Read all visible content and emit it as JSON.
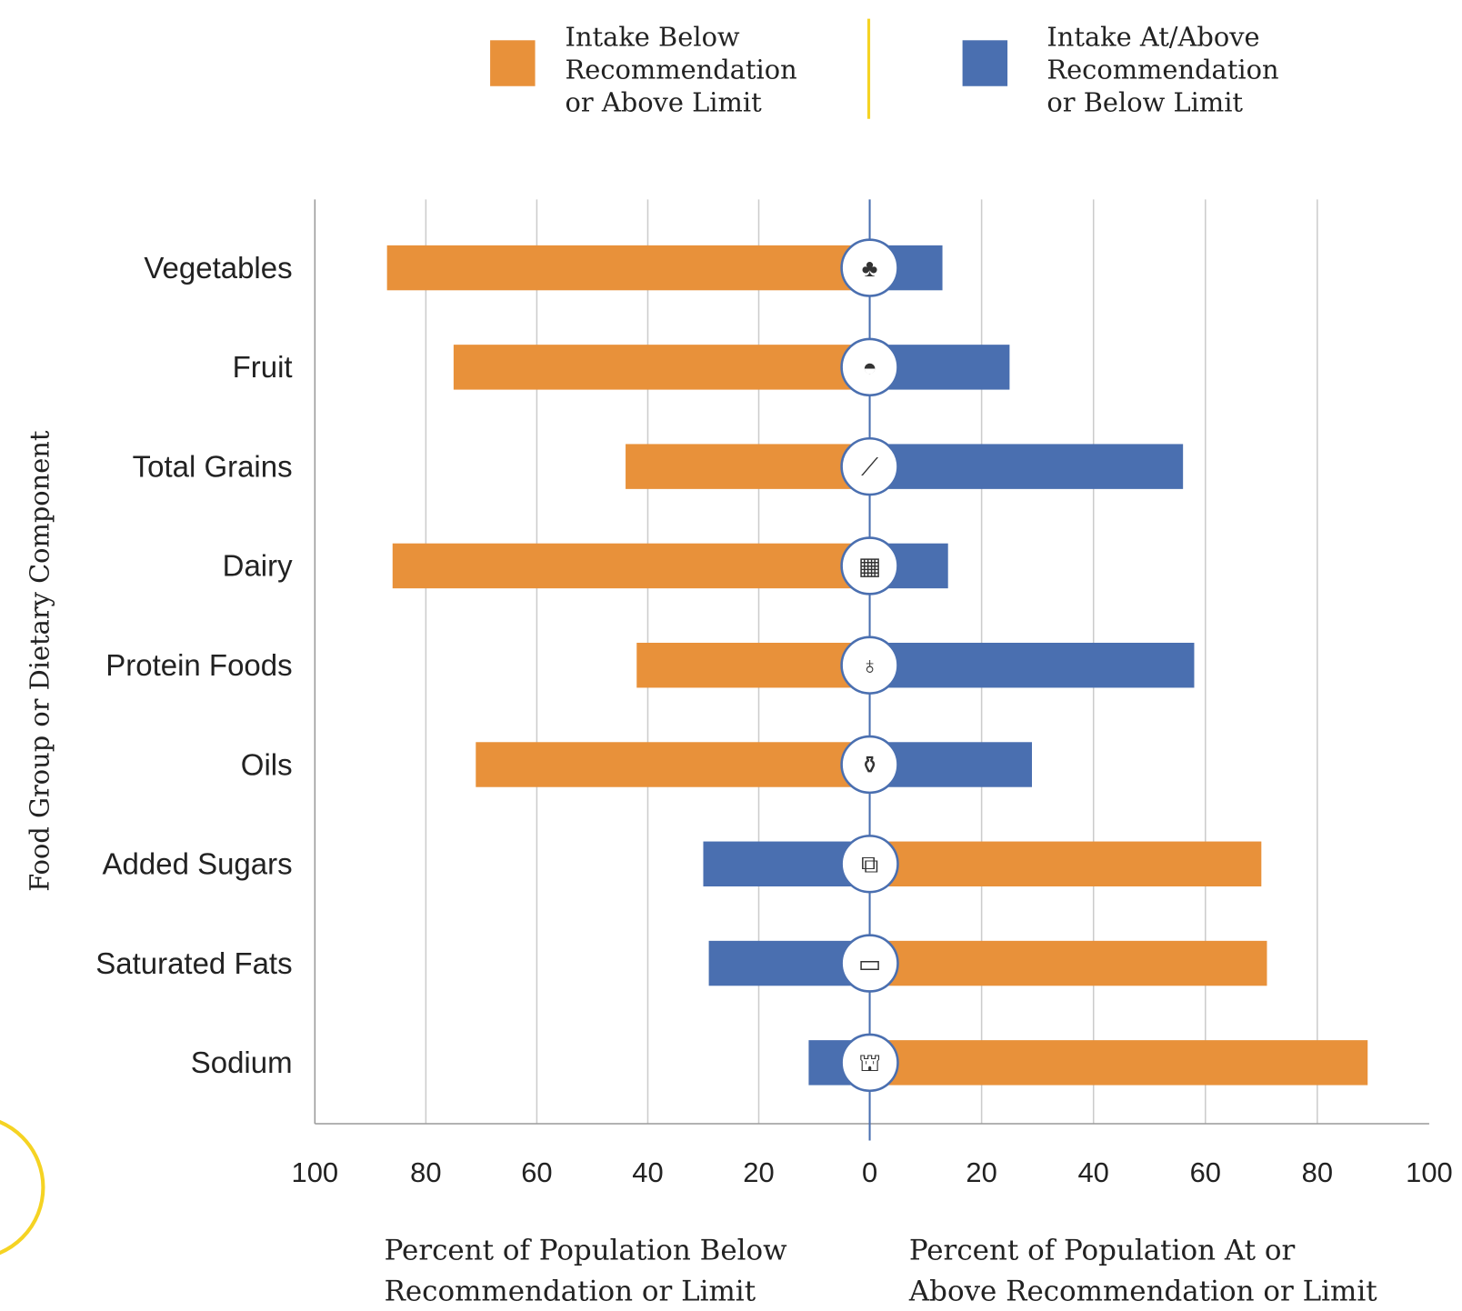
{
  "legend": {
    "below": {
      "lines": [
        "Intake Below",
        "Recommendation",
        "or Above Limit"
      ],
      "color": "#E8913A"
    },
    "above": {
      "lines": [
        "Intake At/Above",
        "Recommendation",
        "or Below Limit"
      ],
      "color": "#4A6FB0"
    }
  },
  "chart_data": {
    "type": "bar",
    "orientation": "horizontal-diverging",
    "ylabel": "Food Group or Dietary Component",
    "xlabel_left": [
      "Percent of Population Below",
      "Recommendation or Limit"
    ],
    "xlabel_right": [
      "Percent of Population At or",
      "Above Recommendation or Limit"
    ],
    "xlim_left": [
      100,
      0
    ],
    "xlim_right": [
      0,
      100
    ],
    "x_ticks_left": [
      "100",
      "80",
      "60",
      "40",
      "20"
    ],
    "x_ticks_center": "0",
    "x_ticks_right": [
      "20",
      "40",
      "60",
      "80",
      "100"
    ],
    "grid": true,
    "legend_position": "top",
    "categories": [
      "Vegetables",
      "Fruit",
      "Total Grains",
      "Dairy",
      "Protein Foods",
      "Oils",
      "Added Sugars",
      "Saturated Fats",
      "Sodium"
    ],
    "kind": [
      "recommendation",
      "recommendation",
      "recommendation",
      "recommendation",
      "recommendation",
      "recommendation",
      "limit",
      "limit",
      "limit"
    ],
    "icons": [
      "broccoli-icon",
      "watermelon-icon",
      "wheat-icon",
      "cheese-icon",
      "drumstick-icon",
      "oil-bottle-icon",
      "sugar-cubes-icon",
      "butter-icon",
      "salt-shaker-icon"
    ],
    "series": [
      {
        "name": "Percent below recommendation or limit",
        "values": [
          87,
          75,
          44,
          86,
          42,
          71,
          30,
          29,
          11
        ]
      },
      {
        "name": "Percent at or above recommendation or limit",
        "values": [
          13,
          25,
          56,
          14,
          58,
          29,
          70,
          71,
          89
        ]
      }
    ]
  }
}
